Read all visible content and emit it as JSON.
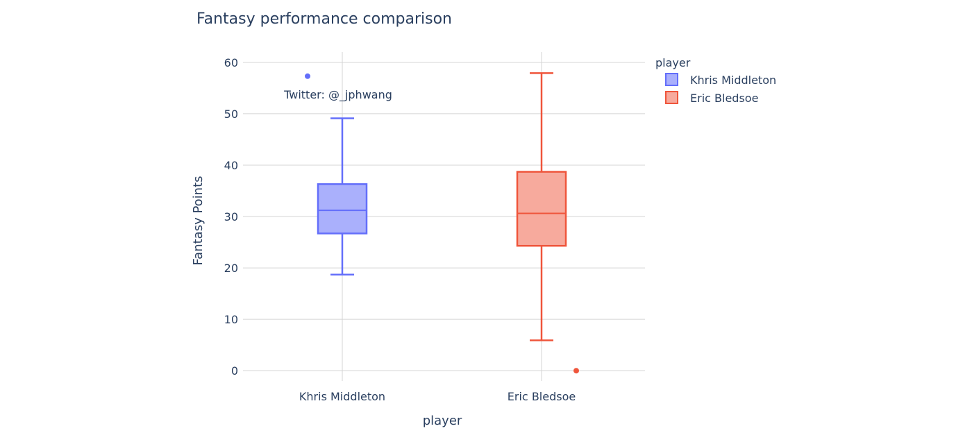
{
  "chart_data": {
    "type": "box",
    "title": "Fantasy performance comparison",
    "xlabel": "player",
    "ylabel": "Fantasy Points",
    "ylim": [
      -2,
      62
    ],
    "yticks": [
      0,
      10,
      20,
      30,
      40,
      50,
      60
    ],
    "categories": [
      "Khris Middleton",
      "Eric Bledsoe"
    ],
    "legend": {
      "title": "player",
      "position": "top-right"
    },
    "series": [
      {
        "name": "Khris Middleton",
        "color": "#636efa",
        "fill": "#aab0fc",
        "min": 18.7,
        "q1": 26.7,
        "median": 31.2,
        "q3": 36.3,
        "max": 49.1,
        "outliers": [
          57.3
        ]
      },
      {
        "name": "Eric Bledsoe",
        "color": "#ef553b",
        "fill": "#f7aa9d",
        "min": 5.9,
        "q1": 24.3,
        "median": 30.6,
        "q3": 38.7,
        "max": 57.9,
        "outliers": [
          0
        ]
      }
    ],
    "annotation": {
      "text": "Twitter: @_jphwang",
      "x": "Khris Middleton",
      "y": 53
    },
    "grid": true
  }
}
